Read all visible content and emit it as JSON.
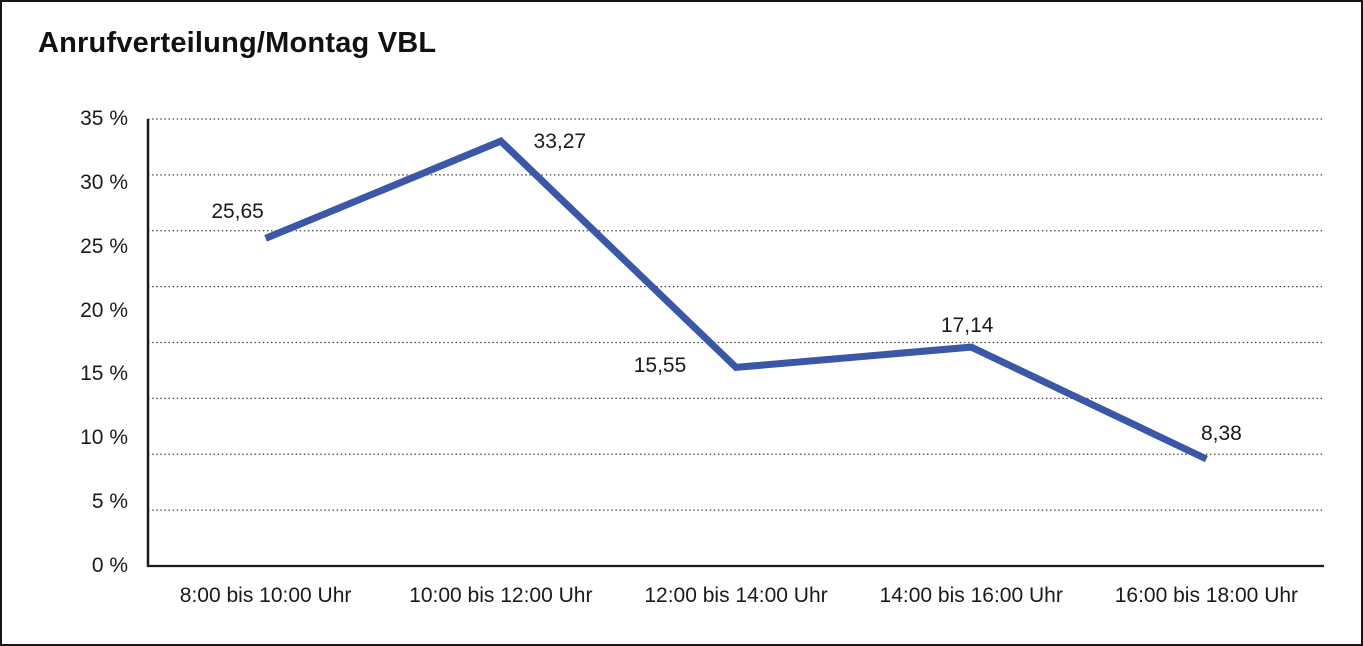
{
  "chart_data": {
    "type": "line",
    "title": "Anrufverteilung/Montag VBL",
    "categories": [
      "8:00 bis 10:00 Uhr",
      "10:00 bis 12:00 Uhr",
      "12:00 bis 14:00 Uhr",
      "14:00 bis 16:00 Uhr",
      "16:00 bis 18:00 Uhr"
    ],
    "series": [
      {
        "name": "Anrufverteilung Montag VBL",
        "values": [
          25.65,
          33.27,
          15.55,
          17.14,
          8.38
        ]
      }
    ],
    "value_labels": [
      "25,65",
      "33,27",
      "15,55",
      "17,14",
      "8,38"
    ],
    "y_tick_labels": [
      "35 %",
      "30 %",
      "25 %",
      "20 %",
      "15 %",
      "10 %",
      "5 %",
      "0 %"
    ],
    "y_tick_values": [
      35,
      30,
      25,
      20,
      15,
      10,
      5,
      0
    ],
    "ylim": [
      0,
      35
    ],
    "xlabel": "",
    "ylabel": "",
    "grid": "horizontal-dotted",
    "gridline_intervals": 8,
    "legend": "none",
    "line_color": "#3A57A8",
    "axis_color": "#1a1a1a"
  }
}
